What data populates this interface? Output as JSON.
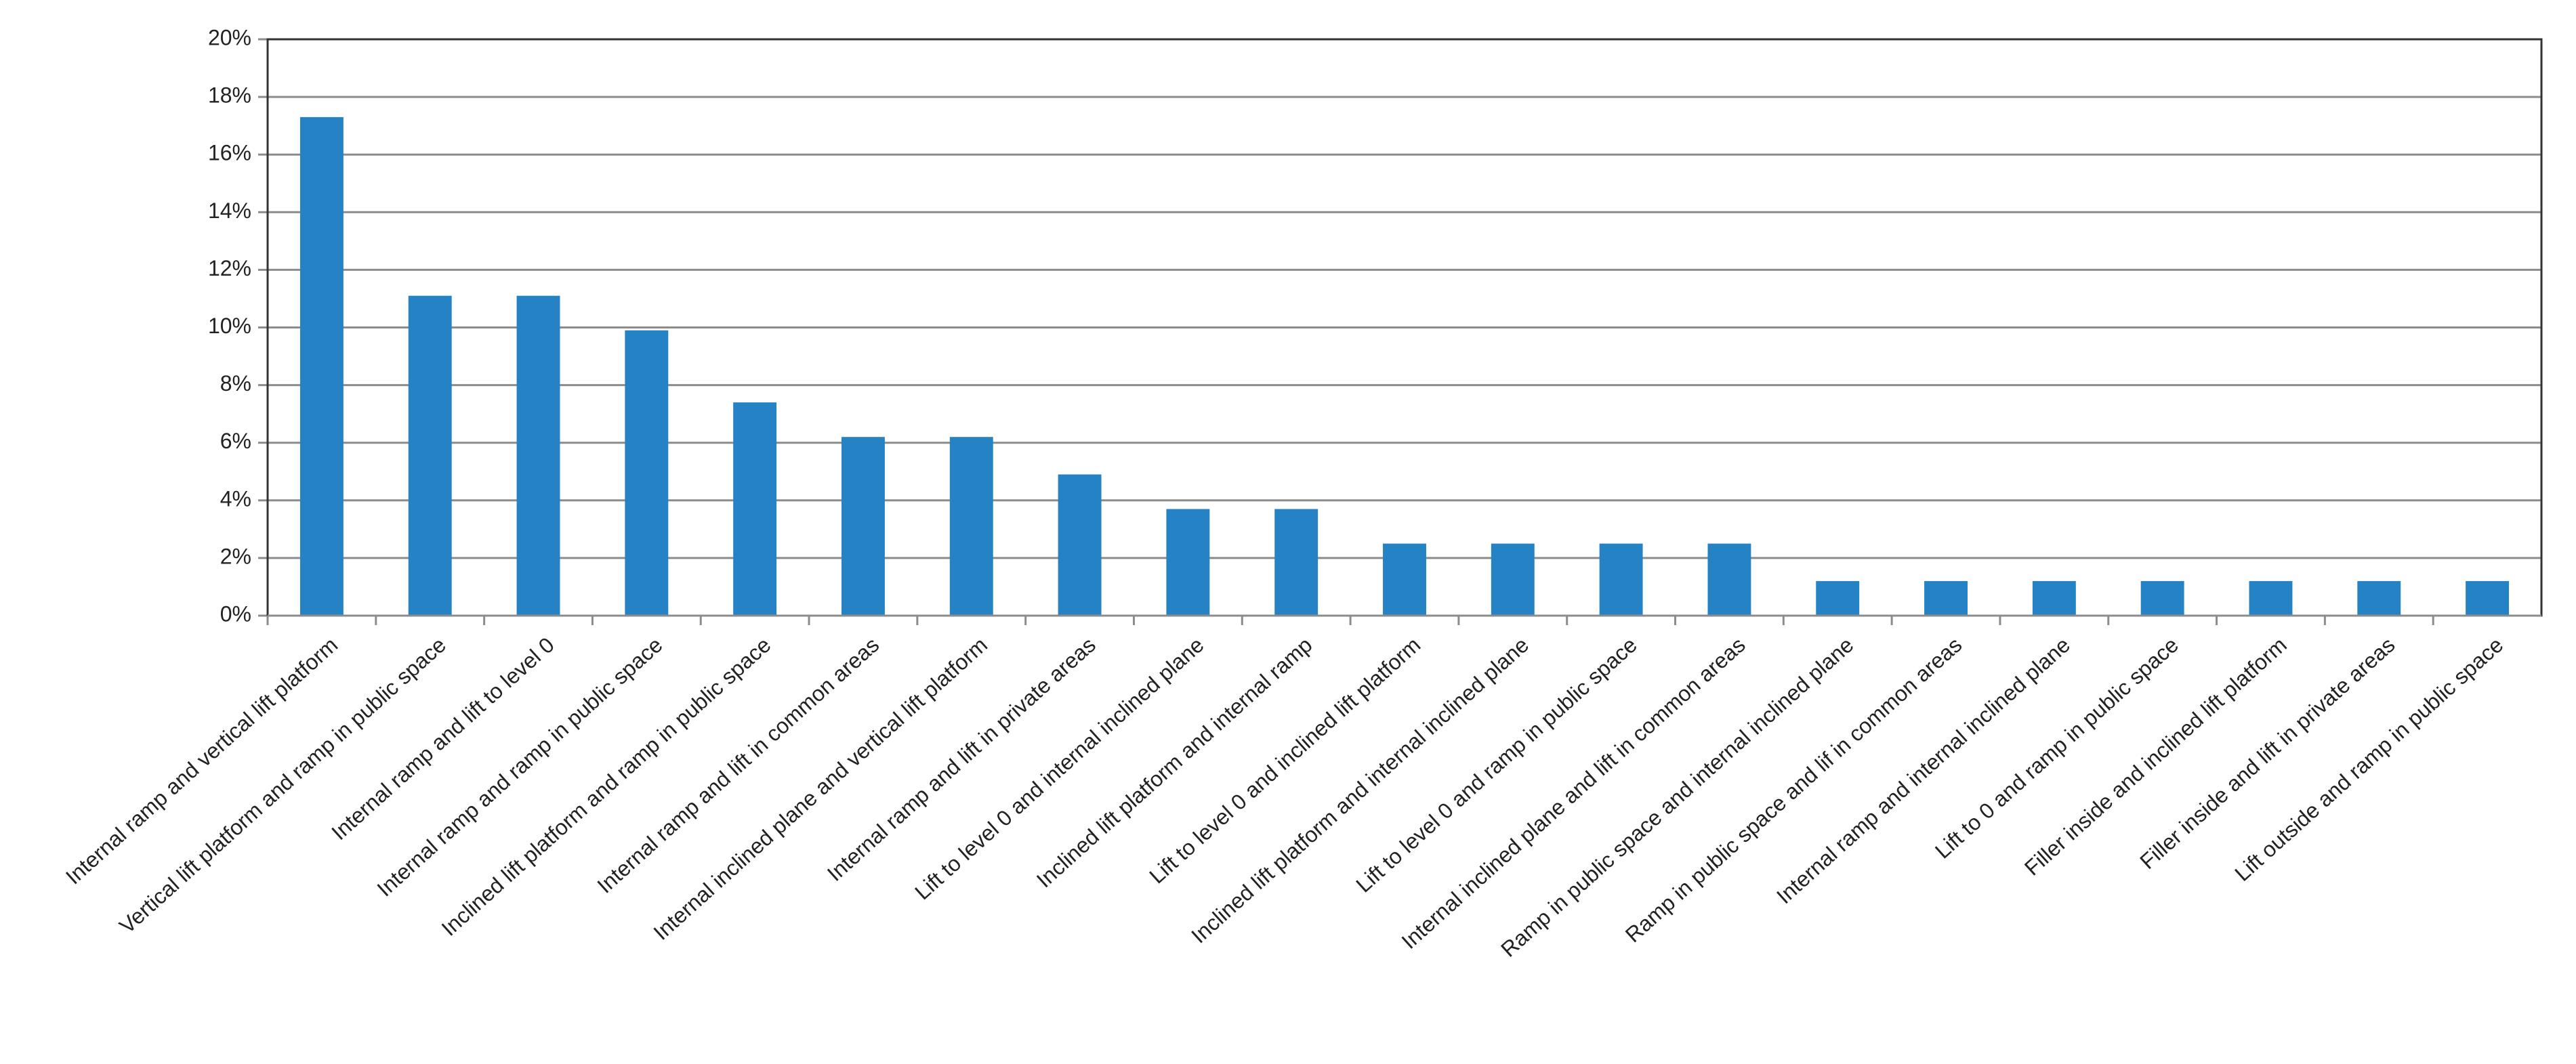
{
  "chart_data": {
    "type": "bar",
    "categories": [
      "Internal ramp and vertical lift platform",
      "Vertical lift platform and ramp in public space",
      "Internal ramp and lift to level 0",
      "Internal ramp and ramp in public space",
      "Inclined lift platform and ramp in public space",
      "Internal ramp and lift in common areas",
      "Internal inclined plane and vertical lift platform",
      "Internal ramp and lift in private areas",
      "Lift to level 0 and internal inclined plane",
      "Inclined lift platform and internal ramp",
      "Lift to level 0 and inclined lift platform",
      "Inclined lift platform and internal inclined plane",
      "Lift to level 0 and ramp in public space",
      "Internal inclined plane and lift in common areas",
      "Ramp in public space and internal inclined plane",
      "Ramp in public space and lif in common areas",
      "Internal ramp and internal inclined plane",
      "Lift to 0 and ramp in public space",
      "Filler inside and inclined lift platform",
      "Filler inside and lift in private areas",
      "Lift outside and ramp in public space"
    ],
    "values": [
      17.3,
      11.1,
      11.1,
      9.9,
      7.4,
      6.2,
      6.2,
      4.9,
      3.7,
      3.7,
      2.5,
      2.5,
      2.5,
      2.5,
      1.2,
      1.2,
      1.2,
      1.2,
      1.2,
      1.2,
      1.2
    ],
    "color": "#2583c5",
    "ylim": [
      0,
      20
    ],
    "yticks": [
      {
        "value": 0,
        "label": "0%"
      },
      {
        "value": 2,
        "label": "2%"
      },
      {
        "value": 4,
        "label": "4%"
      },
      {
        "value": 6,
        "label": "6%"
      },
      {
        "value": 8,
        "label": "8%"
      },
      {
        "value": 10,
        "label": "10%"
      },
      {
        "value": 12,
        "label": "12%"
      },
      {
        "value": 14,
        "label": "14%"
      },
      {
        "value": 16,
        "label": "16%"
      },
      {
        "value": 18,
        "label": "18%"
      },
      {
        "value": 20,
        "label": "20%"
      }
    ],
    "grid": true
  }
}
